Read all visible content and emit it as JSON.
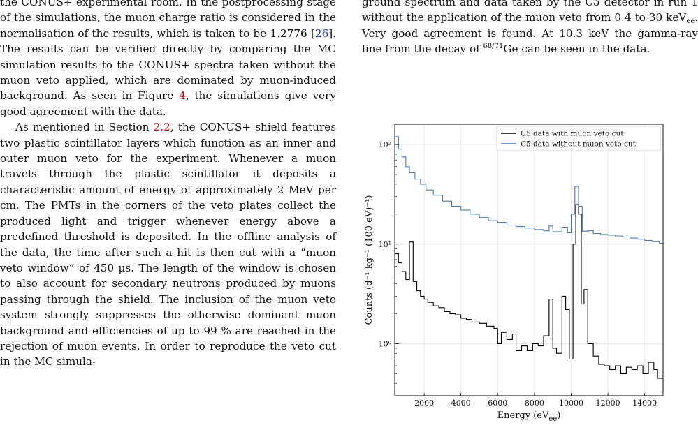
{
  "left_column": {
    "p1": {
      "t1": "the CONUS+ experimental room. In the postprocessing stage of the simulations, the muon charge ratio is considered in the normalisation of the results, which is taken to be 1.2776 [",
      "cite": "26",
      "t2": "]. The results can be verified directly by comparing the MC simulation results to the CONUS+ spectra taken without the muon veto applied, which are dominated by muon-induced background. As seen in Figure ",
      "ref": "4",
      "t3": ", the simulations give very good agreement with the data."
    },
    "p2": {
      "t1": "As mentioned in Section ",
      "ref": "2.2",
      "t2": ", the CONUS+ shield features two plastic scintillator layers which function as an inner and outer muon veto for the experiment. Whenever a muon travels through the plastic scintillator it deposits a characteristic amount of energy of approximately 2 MeV per cm. The PMTs in the corners of the veto plates collect the produced light and trigger whenever energy above a predefined threshold is deposited. In the offline analysis of the data, the time after such a hit is then cut with a ”muon veto window” of 450 μs. The length of the window is chosen to also account for secondary neutrons produced by muons passing through the shield. The inclusion of the muon veto system strongly suppresses the otherwise dominant muon background and efficiencies of up to 99 % are reached in the rejection of muon events. In order to reproduce the veto cut in the MC simula-"
    }
  },
  "right_column": {
    "p1": {
      "t1": "ground spectrum and data taken by the C5 detector in run 1 without the application of the muon veto from 0.4 to 30 keV",
      "sub": "ee",
      "t2": ". Very good agreement is found. At 10.3 keV the gamma-ray line from the decay of ",
      "sup": "68/71",
      "t3": "Ge can be seen in the data."
    }
  },
  "chart_data": {
    "type": "line",
    "step": true,
    "xlabel": "Energy (eV_ee)",
    "ylabel": "Counts (d⁻¹ kg⁻¹ (100 eV)⁻¹)",
    "xlim": [
      400,
      15000
    ],
    "ylim": [
      0.3,
      160
    ],
    "yscale": "log",
    "xticks": [
      2000,
      4000,
      6000,
      8000,
      10000,
      12000,
      14000
    ],
    "yticks": [
      {
        "value": 1,
        "label": "10⁰"
      },
      {
        "value": 10,
        "label": "10¹"
      },
      {
        "value": 100,
        "label": "10²"
      }
    ],
    "grid": true,
    "legend_position": "top-right",
    "series": [
      {
        "name": "C5 data with muon veto cut",
        "color": "#000000",
        "points": [
          [
            400,
            8
          ],
          [
            600,
            6.5
          ],
          [
            800,
            5.3
          ],
          [
            1000,
            4.4
          ],
          [
            1200,
            10.5
          ],
          [
            1400,
            4.2
          ],
          [
            1600,
            3.4
          ],
          [
            1800,
            3.0
          ],
          [
            2000,
            2.8
          ],
          [
            2200,
            2.6
          ],
          [
            2500,
            2.4
          ],
          [
            2800,
            2.3
          ],
          [
            3100,
            2.1
          ],
          [
            3400,
            2.0
          ],
          [
            3700,
            1.95
          ],
          [
            4000,
            1.8
          ],
          [
            4300,
            1.75
          ],
          [
            4600,
            1.65
          ],
          [
            5000,
            1.6
          ],
          [
            5400,
            1.5
          ],
          [
            5800,
            1.42
          ],
          [
            6000,
            1.0
          ],
          [
            6200,
            1.3
          ],
          [
            6500,
            1.1
          ],
          [
            6800,
            1.25
          ],
          [
            7000,
            0.85
          ],
          [
            7300,
            0.95
          ],
          [
            7600,
            0.85
          ],
          [
            7900,
            1.0
          ],
          [
            8200,
            0.95
          ],
          [
            8500,
            1.2
          ],
          [
            8800,
            2.8
          ],
          [
            9000,
            0.9
          ],
          [
            9200,
            0.8
          ],
          [
            9500,
            3.0
          ],
          [
            9700,
            2.2
          ],
          [
            9900,
            0.7
          ],
          [
            10100,
            10
          ],
          [
            10250,
            25
          ],
          [
            10400,
            20
          ],
          [
            10550,
            2.5
          ],
          [
            10700,
            3.5
          ],
          [
            10900,
            1.0
          ],
          [
            11200,
            0.75
          ],
          [
            11500,
            0.62
          ],
          [
            11800,
            0.6
          ],
          [
            12100,
            0.55
          ],
          [
            12400,
            0.6
          ],
          [
            12700,
            0.5
          ],
          [
            13000,
            0.58
          ],
          [
            13300,
            0.55
          ],
          [
            13600,
            0.6
          ],
          [
            13900,
            0.5
          ],
          [
            14200,
            0.65
          ],
          [
            14500,
            0.55
          ],
          [
            14700,
            0.45
          ],
          [
            15000,
            0.42
          ]
        ]
      },
      {
        "name": "C5 data without muon veto cut",
        "color": "#4a7ab0",
        "points": [
          [
            400,
            120
          ],
          [
            600,
            90
          ],
          [
            800,
            75
          ],
          [
            1000,
            60
          ],
          [
            1200,
            52
          ],
          [
            1500,
            45
          ],
          [
            1800,
            40
          ],
          [
            2100,
            35
          ],
          [
            2500,
            31
          ],
          [
            3000,
            27
          ],
          [
            3500,
            24
          ],
          [
            4000,
            22
          ],
          [
            4500,
            20
          ],
          [
            5000,
            18.5
          ],
          [
            5500,
            17.2
          ],
          [
            6000,
            16.5
          ],
          [
            6500,
            15.5
          ],
          [
            7000,
            15
          ],
          [
            7500,
            14.5
          ],
          [
            8000,
            14
          ],
          [
            8500,
            13.6
          ],
          [
            8800,
            15.2
          ],
          [
            9000,
            13.3
          ],
          [
            9500,
            14.8
          ],
          [
            9800,
            13
          ],
          [
            10000,
            20
          ],
          [
            10200,
            38
          ],
          [
            10400,
            24
          ],
          [
            10600,
            13.5
          ],
          [
            10900,
            13.6
          ],
          [
            11200,
            12.8
          ],
          [
            11600,
            12.5
          ],
          [
            12000,
            12.3
          ],
          [
            12400,
            12.1
          ],
          [
            12800,
            11.8
          ],
          [
            13200,
            11.5
          ],
          [
            13600,
            11.2
          ],
          [
            14000,
            10.9
          ],
          [
            14400,
            10.6
          ],
          [
            14800,
            10.2
          ],
          [
            15000,
            9.9
          ]
        ]
      }
    ]
  }
}
